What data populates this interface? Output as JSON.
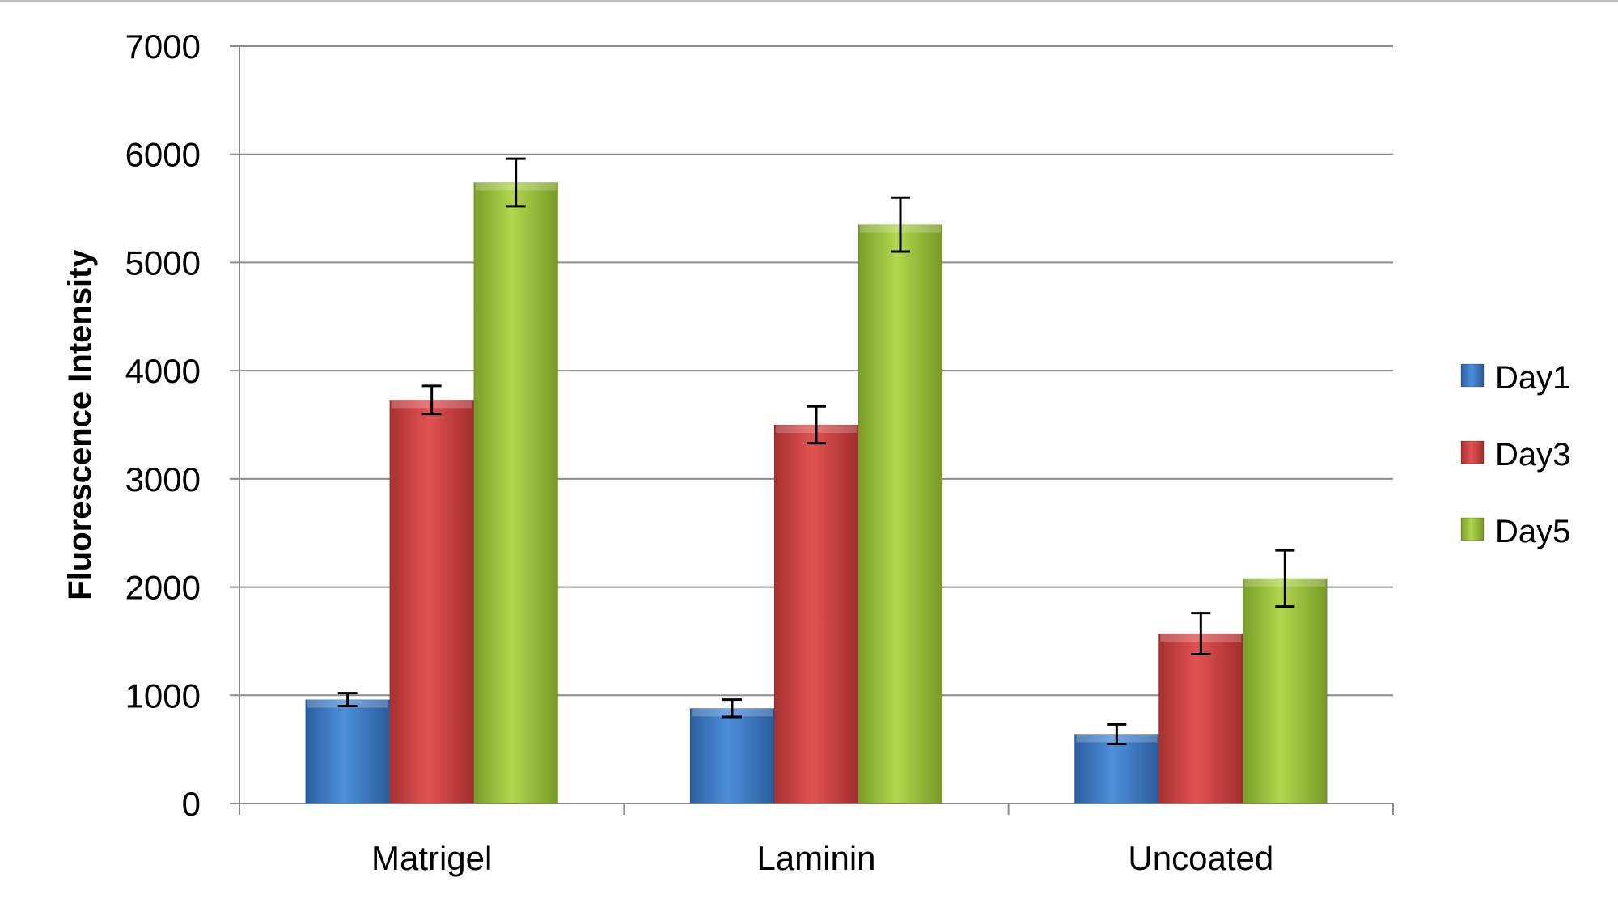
{
  "chart_data": {
    "type": "bar",
    "title": "",
    "xlabel": "",
    "ylabel": "Fluorescence Intensity",
    "ylim": [
      0,
      7000
    ],
    "yticks": [
      0,
      1000,
      2000,
      3000,
      4000,
      5000,
      6000,
      7000
    ],
    "grid": true,
    "legend_position": "right",
    "categories": [
      "Matrigel",
      "Laminin",
      "Uncoated"
    ],
    "series": [
      {
        "name": "Day1",
        "color": "#3a78c8",
        "values": [
          960,
          880,
          640
        ],
        "errors": [
          60,
          80,
          90
        ]
      },
      {
        "name": "Day3",
        "color": "#d44444",
        "values": [
          3730,
          3500,
          1570
        ],
        "errors": [
          130,
          170,
          190
        ]
      },
      {
        "name": "Day5",
        "color": "#9cc43e",
        "values": [
          5740,
          5350,
          2080
        ],
        "errors": [
          220,
          250,
          260
        ]
      }
    ]
  }
}
